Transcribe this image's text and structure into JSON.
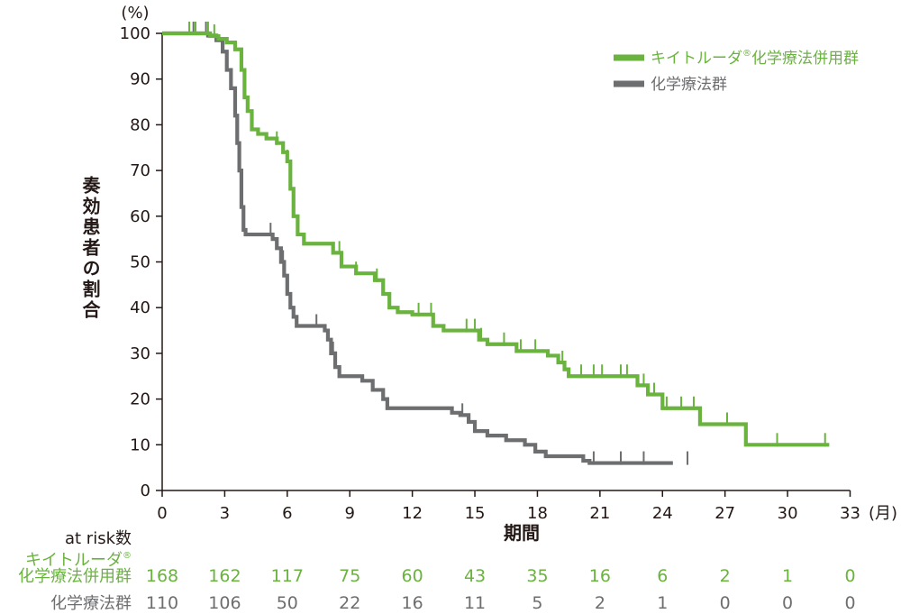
{
  "colors": {
    "treatment": "#6ab33e",
    "control": "#6d6e70",
    "axis": "#231815",
    "text": "#231815"
  },
  "chart_data": {
    "type": "line",
    "subtype": "kaplan-meier step",
    "xlabel": "期間",
    "x_unit": "(月)",
    "ylabel": "奏効患者の割合",
    "y_unit": "(%)",
    "xlim": [
      0,
      33
    ],
    "ylim": [
      0,
      100
    ],
    "xticks": [
      0,
      3,
      6,
      9,
      12,
      15,
      18,
      21,
      24,
      27,
      30,
      33
    ],
    "yticks": [
      0,
      10,
      20,
      30,
      40,
      50,
      60,
      70,
      80,
      90,
      100
    ],
    "legend_position": "top-right",
    "series": [
      {
        "name": "キイトルーダ®化学療法併用群",
        "legend_label": "キイトルーダ",
        "legend_mark": "®",
        "legend_suffix": "化学療法併用群",
        "color_key": "treatment",
        "steps": [
          [
            0,
            100
          ],
          [
            2.3,
            99.4
          ],
          [
            2.7,
            98.8
          ],
          [
            3.1,
            98
          ],
          [
            3.5,
            96.5
          ],
          [
            3.8,
            92
          ],
          [
            3.95,
            86
          ],
          [
            4.1,
            83
          ],
          [
            4.3,
            79
          ],
          [
            4.6,
            78
          ],
          [
            5.0,
            77
          ],
          [
            5.5,
            76
          ],
          [
            5.8,
            74
          ],
          [
            6.0,
            72
          ],
          [
            6.15,
            66
          ],
          [
            6.3,
            60
          ],
          [
            6.5,
            56
          ],
          [
            6.8,
            54
          ],
          [
            8.2,
            52
          ],
          [
            8.6,
            49
          ],
          [
            9.3,
            47.5
          ],
          [
            10.2,
            46
          ],
          [
            10.6,
            43
          ],
          [
            10.9,
            40
          ],
          [
            11.3,
            39
          ],
          [
            12.0,
            38.5
          ],
          [
            13.0,
            36
          ],
          [
            13.5,
            35
          ],
          [
            15.2,
            33
          ],
          [
            15.6,
            32
          ],
          [
            17.0,
            30.5
          ],
          [
            18.5,
            29.5
          ],
          [
            19.0,
            28
          ],
          [
            19.3,
            26.5
          ],
          [
            19.5,
            25
          ],
          [
            22.8,
            23
          ],
          [
            23.3,
            21
          ],
          [
            24.0,
            18
          ],
          [
            25.8,
            14.5
          ],
          [
            28.0,
            10
          ],
          [
            32.0,
            10
          ]
        ],
        "censor_times": [
          1.3,
          1.6,
          2.2,
          2.5,
          5.5,
          6.0,
          8.5,
          9.3,
          10.3,
          12.3,
          12.9,
          14.6,
          15.0,
          15.3,
          16.4,
          17.2,
          17.9,
          19.2,
          20.1,
          20.7,
          21.1,
          22.0,
          22.3,
          23.1,
          23.6,
          24.2,
          24.9,
          25.5,
          27.1,
          29.5,
          31.8
        ],
        "at_risk": [
          168,
          162,
          117,
          75,
          60,
          43,
          35,
          16,
          6,
          2,
          1,
          0
        ]
      },
      {
        "name": "化学療法群",
        "color_key": "control",
        "steps": [
          [
            0,
            100
          ],
          [
            2.2,
            99.5
          ],
          [
            2.6,
            98.5
          ],
          [
            2.9,
            96
          ],
          [
            3.1,
            92
          ],
          [
            3.3,
            88
          ],
          [
            3.5,
            82
          ],
          [
            3.6,
            76
          ],
          [
            3.7,
            70
          ],
          [
            3.8,
            62
          ],
          [
            3.9,
            57
          ],
          [
            4.0,
            56
          ],
          [
            5.3,
            55
          ],
          [
            5.5,
            53
          ],
          [
            5.7,
            50
          ],
          [
            5.85,
            47
          ],
          [
            6.0,
            43
          ],
          [
            6.15,
            40
          ],
          [
            6.3,
            38
          ],
          [
            6.45,
            36
          ],
          [
            7.8,
            35
          ],
          [
            7.95,
            33
          ],
          [
            8.1,
            30
          ],
          [
            8.3,
            27
          ],
          [
            8.5,
            25
          ],
          [
            9.6,
            24
          ],
          [
            10.1,
            22
          ],
          [
            10.6,
            20
          ],
          [
            10.8,
            18
          ],
          [
            13.9,
            17
          ],
          [
            14.3,
            16.5
          ],
          [
            14.7,
            15
          ],
          [
            15.0,
            13
          ],
          [
            15.6,
            12
          ],
          [
            16.5,
            11
          ],
          [
            17.4,
            10
          ],
          [
            17.9,
            8.5
          ],
          [
            18.4,
            7.5
          ],
          [
            20.0,
            7.5
          ],
          [
            20.2,
            6.5
          ],
          [
            20.5,
            6
          ],
          [
            24.5,
            6
          ]
        ],
        "censor_times": [
          1.5,
          2.1,
          5.2,
          5.8,
          7.4,
          8.2,
          14.4,
          20.7,
          22.0,
          23.1,
          25.2
        ],
        "at_risk": [
          110,
          106,
          50,
          22,
          16,
          11,
          5,
          2,
          1,
          0,
          0,
          0
        ]
      }
    ],
    "at_risk_times": [
      0,
      3,
      6,
      9,
      12,
      15,
      18,
      21,
      24,
      27,
      30,
      33
    ]
  },
  "risk_table": {
    "title": "at risk数",
    "treatment_label_line1": "キイトルーダ",
    "treatment_label_mark": "®",
    "treatment_label_line2": "化学療法併用群",
    "control_label": "化学療法群"
  }
}
